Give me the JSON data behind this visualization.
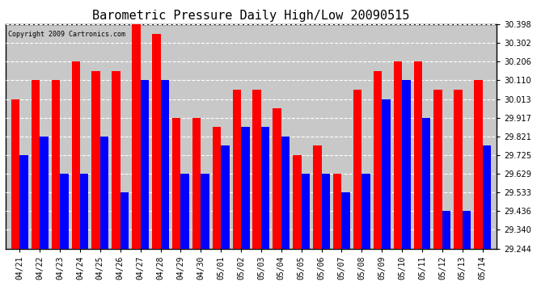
{
  "title": "Barometric Pressure Daily High/Low 20090515",
  "copyright": "Copyright 2009 Cartronics.com",
  "categories": [
    "04/21",
    "04/22",
    "04/23",
    "04/24",
    "04/25",
    "04/26",
    "04/27",
    "04/28",
    "04/29",
    "04/30",
    "05/01",
    "05/02",
    "05/03",
    "05/04",
    "05/05",
    "05/06",
    "05/07",
    "05/08",
    "05/09",
    "05/10",
    "05/11",
    "05/12",
    "05/13",
    "05/14"
  ],
  "highs": [
    30.013,
    30.11,
    30.11,
    30.206,
    30.158,
    30.158,
    30.398,
    30.35,
    29.917,
    29.917,
    29.869,
    30.061,
    30.061,
    29.965,
    29.725,
    29.773,
    29.629,
    30.061,
    30.158,
    30.206,
    30.206,
    30.062,
    30.062,
    30.11
  ],
  "lows": [
    29.725,
    29.821,
    29.629,
    29.629,
    29.821,
    29.533,
    30.11,
    30.11,
    29.629,
    29.629,
    29.773,
    29.869,
    29.869,
    29.821,
    29.629,
    29.629,
    29.533,
    29.629,
    30.013,
    30.11,
    29.917,
    29.436,
    29.436,
    29.773
  ],
  "ymin": 29.244,
  "ylim": [
    29.244,
    30.398
  ],
  "yticks": [
    29.244,
    29.34,
    29.436,
    29.533,
    29.629,
    29.725,
    29.821,
    29.917,
    30.013,
    30.11,
    30.206,
    30.302,
    30.398
  ],
  "high_color": "#ff0000",
  "low_color": "#0000ff",
  "bg_color": "#c8c8c8",
  "grid_color": "#ffffff",
  "title_fontsize": 11,
  "bar_width": 0.42
}
